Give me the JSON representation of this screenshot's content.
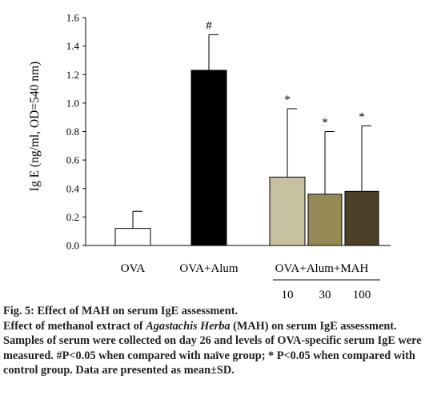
{
  "chart_data": {
    "type": "bar",
    "ylabel": "Ig E (ng/ml, OD=540 nm)",
    "ylim": [
      0,
      1.6
    ],
    "yticks": [
      "0.0",
      "0.2",
      "0.4",
      "0.6",
      "0.8",
      "1.0",
      "1.2",
      "1.4",
      "1.6"
    ],
    "ytick_values": [
      0,
      0.2,
      0.4,
      0.6,
      0.8,
      1.0,
      1.2,
      1.4,
      1.6
    ],
    "group_labels": [
      "OVA",
      "OVA+Alum",
      "OVA+Alum+MAH"
    ],
    "dose_labels": [
      "10",
      "30",
      "100"
    ],
    "bars": [
      {
        "value": 0.12,
        "sd": 0.12,
        "mark": "",
        "color": "#ffffff"
      },
      {
        "value": 1.23,
        "sd": 0.25,
        "mark": "#",
        "color": "#000000"
      },
      {
        "value": 0.48,
        "sd": 0.48,
        "mark": "*",
        "color": "#c8c1a0"
      },
      {
        "value": 0.36,
        "sd": 0.44,
        "mark": "*",
        "color": "#958a55"
      },
      {
        "value": 0.38,
        "sd": 0.46,
        "mark": "*",
        "color": "#4a4128"
      }
    ]
  },
  "caption": {
    "title": "Fig. 5: Effect of MAH on serum IgE assessment.",
    "text_before_italic": "Effect of methanol extract of ",
    "italic": "Agastachis Herba",
    "text_after_italic": " (MAH) on serum IgE assessment. Samples of serum were collected on day 26 and levels of OVA-specific serum IgE were measured. #P<0.05 when compared with naïve group; * P<0.05 when compared with control group. Data are presented as mean±SD."
  }
}
